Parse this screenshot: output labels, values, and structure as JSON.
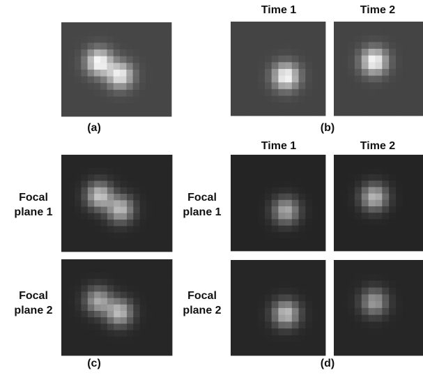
{
  "labels": [
    "(a)",
    "(b)",
    "(c)",
    "(d)"
  ],
  "time_headers": {
    "b": [
      "Time 1",
      "Time 2"
    ],
    "d": [
      "Time 1",
      "Time 2"
    ]
  },
  "row_labels": {
    "c": [
      [
        "Focal",
        "plane 1"
      ],
      [
        "Focal",
        "plane 2"
      ]
    ],
    "d": [
      [
        "Focal",
        "plane 1"
      ],
      [
        "Focal",
        "plane 2"
      ]
    ]
  }
}
